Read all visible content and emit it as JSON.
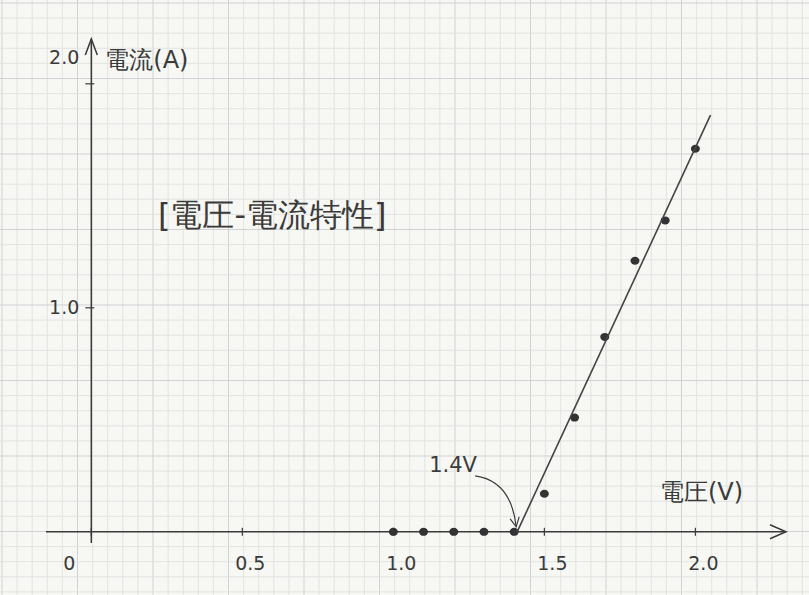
{
  "chart_data": {
    "type": "scatter",
    "title": "[電圧-電流特性]",
    "x_label": "電圧(V)",
    "y_label": "電流(A)",
    "xlim": [
      -0.15,
      2.3
    ],
    "ylim": [
      -0.05,
      2.2
    ],
    "xticks": [
      0,
      0.5,
      {
        "value": 1,
        "label": "1.0"
      },
      1.5,
      {
        "value": 2,
        "label": "2.0"
      }
    ],
    "yticks": [
      {
        "value": 1,
        "label": "1.0"
      },
      {
        "value": 2,
        "label": "2.0"
      }
    ],
    "series": [
      {
        "type": "scatter",
        "marker": "circle",
        "color": "#333333",
        "x": [
          1.0,
          1.1,
          1.2,
          1.3,
          1.4,
          1.5,
          1.6,
          1.7,
          1.8,
          1.9,
          2.0
        ],
        "values": [
          0,
          0,
          0,
          0,
          0,
          0.17,
          0.51,
          0.87,
          1.21,
          1.39,
          1.71
        ]
      },
      {
        "type": "line",
        "line_style": "solid",
        "color": "#444444",
        "x": [
          1.41,
          2.05
        ],
        "values": [
          0,
          1.86
        ]
      }
    ],
    "annotations": [
      {
        "text": "1.4V",
        "x": 1.4,
        "y": 0
      }
    ]
  }
}
